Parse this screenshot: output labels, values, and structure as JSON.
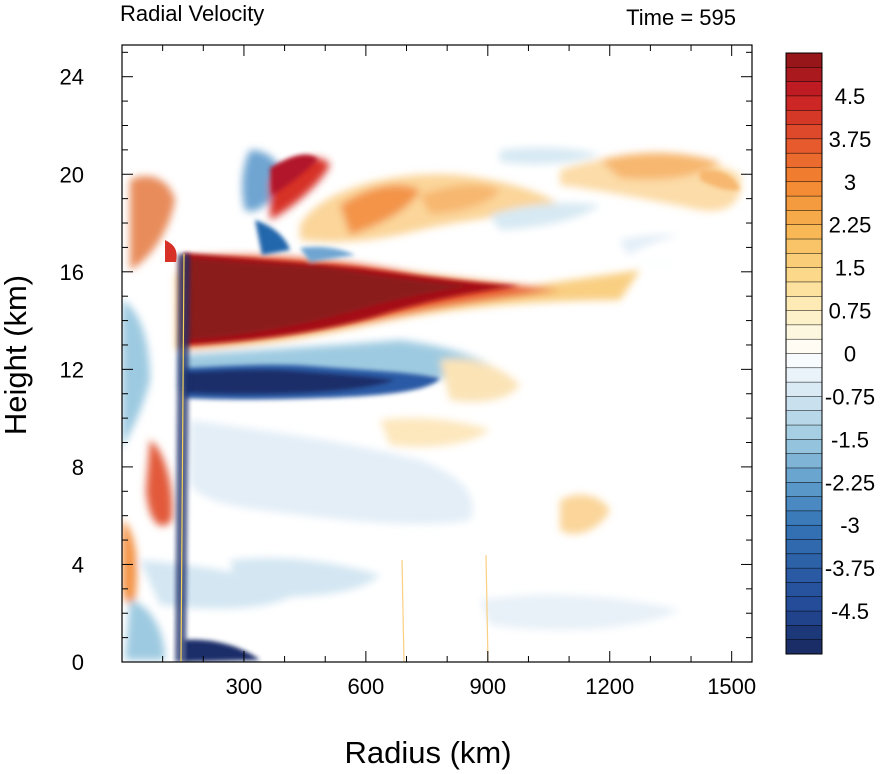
{
  "chart_data": {
    "type": "heatmap",
    "title_left": "Radial Velocity",
    "title_right": "Time = 595",
    "xlabel": "Radius (km)",
    "ylabel": "Height (km)",
    "xlim": [
      0,
      1550
    ],
    "ylim": [
      0,
      25.3
    ],
    "xticks": [
      300,
      600,
      900,
      1200,
      1500
    ],
    "yticks": [
      0,
      4,
      8,
      12,
      16,
      20,
      24
    ],
    "grid": false,
    "colorbar": {
      "range": [
        -5.25,
        5.25
      ],
      "interval": 0.25,
      "labels": [
        4.5,
        3.75,
        3,
        2.25,
        1.5,
        0.75,
        0,
        -0.75,
        -1.5,
        -2.25,
        -3,
        -3.75,
        -4.5
      ]
    },
    "features": [
      {
        "name": "upper outflow jet",
        "value": 5.25,
        "r": [
          140,
          1000
        ],
        "z": [
          13.2,
          16.8
        ]
      },
      {
        "name": "outflow tail",
        "value": 2.3,
        "r": [
          950,
          1300
        ],
        "z": [
          14.8,
          16.3
        ]
      },
      {
        "name": "inflow layer below outflow",
        "value": -4.5,
        "r": [
          150,
          720
        ],
        "z": [
          11.0,
          12.6
        ]
      },
      {
        "name": "boundary-layer inflow",
        "value": -5.0,
        "r": [
          150,
          400
        ],
        "z": [
          0,
          1.0
        ]
      },
      {
        "name": "upper positive band",
        "value": 2.5,
        "r": [
          300,
          900
        ],
        "z": [
          16.8,
          20.5
        ]
      },
      {
        "name": "upper right positive band",
        "value": 2.8,
        "r": [
          1100,
          1500
        ],
        "z": [
          18.0,
          21.0
        ]
      }
    ]
  }
}
